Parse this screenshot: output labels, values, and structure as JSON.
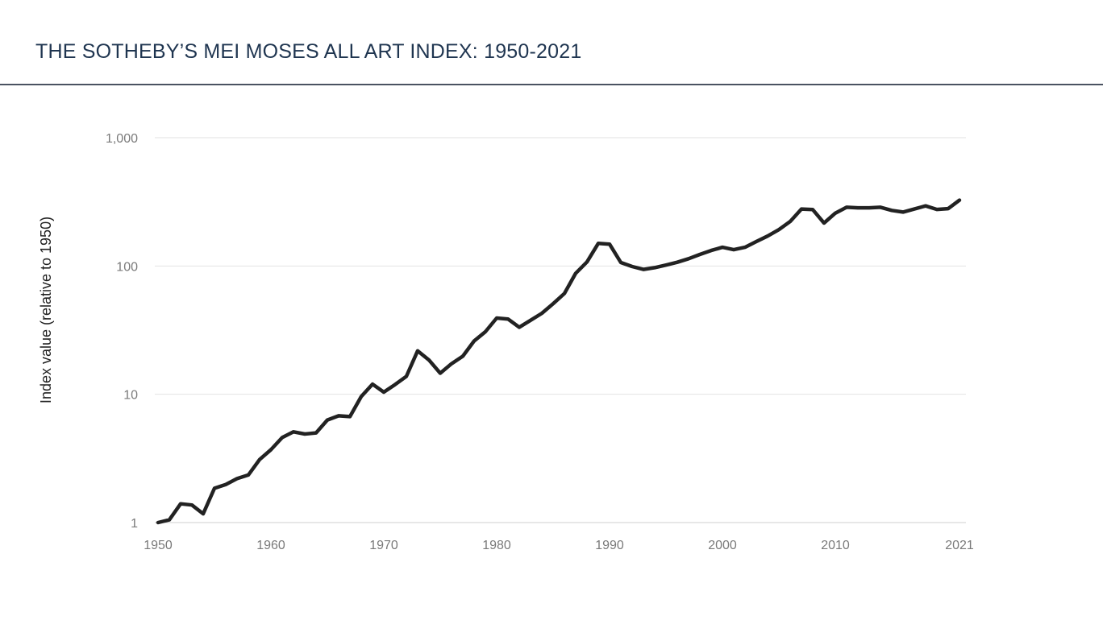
{
  "header": {
    "title": "THE SOTHEBY’S MEI MOSES ALL ART INDEX: 1950-2021"
  },
  "colors": {
    "title": "#1f3550",
    "rule": "#4a5261",
    "line": "#222222",
    "grid": "#e2e2e2",
    "tick_text": "#7a7a7a"
  },
  "chart_data": {
    "type": "line",
    "title": "THE SOTHEBY’S MEI MOSES ALL ART INDEX: 1950-2021",
    "xlabel": "",
    "ylabel": "Index value (relative to 1950)",
    "yscale": "log",
    "ylim": [
      1,
      1000
    ],
    "xlim": [
      1950,
      2021
    ],
    "grid": "horizontal",
    "legend": "none",
    "x_ticks": [
      "1950",
      "1960",
      "1970",
      "1980",
      "1990",
      "2000",
      "2010",
      "2021"
    ],
    "y_ticks": [
      "1",
      "10",
      "100",
      "1,000"
    ],
    "y_tick_values": [
      1,
      10,
      100,
      1000
    ],
    "x": [
      1950,
      1951,
      1952,
      1953,
      1954,
      1955,
      1956,
      1957,
      1958,
      1959,
      1960,
      1961,
      1962,
      1963,
      1964,
      1965,
      1966,
      1967,
      1968,
      1969,
      1970,
      1971,
      1972,
      1973,
      1974,
      1975,
      1976,
      1977,
      1978,
      1979,
      1980,
      1981,
      1982,
      1983,
      1984,
      1985,
      1986,
      1987,
      1988,
      1989,
      1990,
      1991,
      1992,
      1993,
      1994,
      1995,
      1996,
      1997,
      1998,
      1999,
      2000,
      2001,
      2002,
      2003,
      2004,
      2005,
      2006,
      2007,
      2008,
      2009,
      2010,
      2011,
      2012,
      2013,
      2014,
      2015,
      2016,
      2017,
      2018,
      2019,
      2020,
      2021
    ],
    "series": [
      {
        "values": [
          1.0,
          1.05,
          1.4,
          1.37,
          1.17,
          1.85,
          1.98,
          2.2,
          2.35,
          3.1,
          3.7,
          4.6,
          5.1,
          4.9,
          5.0,
          6.3,
          6.8,
          6.7,
          9.6,
          12.0,
          10.4,
          11.9,
          13.8,
          21.8,
          18.5,
          14.6,
          17.3,
          19.8,
          26.0,
          30.7,
          39.3,
          38.6,
          33.3,
          37.7,
          42.8,
          50.8,
          61.0,
          87.7,
          107.5,
          150.0,
          148.0,
          106.5,
          99.0,
          94.0,
          97.0,
          101.6,
          107.0,
          114.0,
          123.0,
          132.0,
          140.0,
          134.0,
          140.0,
          155.0,
          171.0,
          192.0,
          222.0,
          278.0,
          275.0,
          216.0,
          258.0,
          287.0,
          284.0,
          284.0,
          287.0,
          271.0,
          263.0,
          278.0,
          294.0,
          276.0,
          280.0,
          326.0
        ]
      }
    ]
  }
}
